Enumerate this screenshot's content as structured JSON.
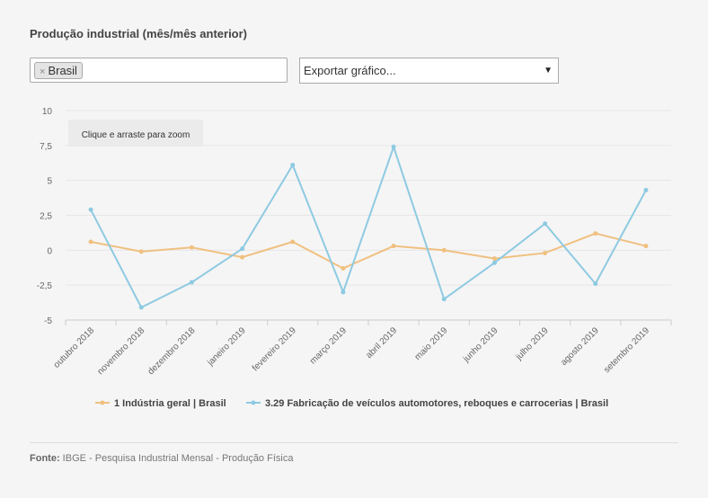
{
  "header": {
    "title": "Produção industrial (mês/mês anterior)"
  },
  "filter": {
    "selected_tag": "Brasil",
    "remove_symbol": "×"
  },
  "export": {
    "label": "Exportar gráfico...",
    "caret": "▼"
  },
  "zoom_hint": "Clique e arraste para zoom",
  "source": {
    "label": "Fonte:",
    "text": "IBGE - Pesquisa Industrial Mensal - Produção Física"
  },
  "chart_data": {
    "type": "line",
    "categories": [
      "outubro 2018",
      "novembro 2018",
      "dezembro 2018",
      "janeiro 2019",
      "fevereiro 2019",
      "março 2019",
      "abril 2019",
      "maio 2019",
      "junho 2019",
      "julho 2019",
      "agosto 2019",
      "setembro 2019"
    ],
    "series": [
      {
        "name": "1 Indústria geral | Brasil",
        "color": "#f0c080",
        "values": [
          0.6,
          -0.1,
          0.2,
          -0.5,
          0.6,
          -1.3,
          0.3,
          0.0,
          -0.6,
          -0.2,
          1.2,
          0.3
        ]
      },
      {
        "name": "3.29 Fabricação de veículos automotores, reboques e carrocerias | Brasil",
        "color": "#8ecae2",
        "values": [
          2.9,
          -4.1,
          -2.3,
          0.1,
          6.1,
          -3.0,
          7.4,
          -3.5,
          -0.9,
          1.9,
          -2.4,
          4.3
        ]
      }
    ],
    "y_ticks": [
      "10",
      "7,5",
      "5",
      "2,5",
      "0",
      "-2,5",
      "-5"
    ],
    "ylim": [
      -5,
      10
    ],
    "grid": true,
    "legend_position": "bottom"
  }
}
